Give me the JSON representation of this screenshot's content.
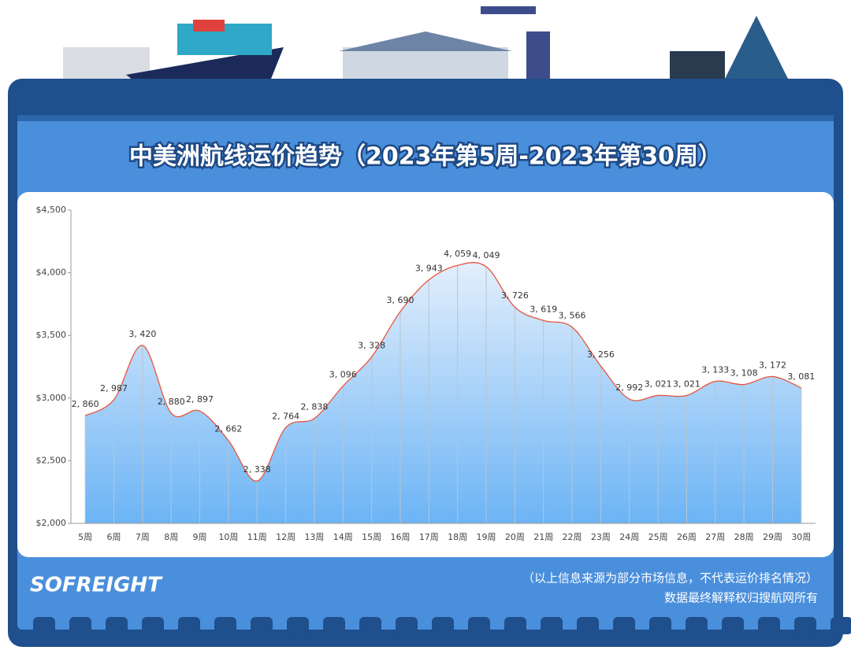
{
  "chart_data": {
    "type": "line",
    "title": "中美洲航线运价趋势（2023年第5周-2023年第30周）",
    "categories": [
      "5周",
      "6周",
      "7周",
      "8周",
      "9周",
      "10周",
      "11周",
      "12周",
      "13周",
      "14周",
      "15周",
      "16周",
      "17周",
      "18周",
      "19周",
      "20周",
      "21周",
      "22周",
      "23周",
      "24周",
      "25周",
      "26周",
      "27周",
      "28周",
      "29周",
      "30周"
    ],
    "values": [
      2860,
      2987,
      3420,
      2880,
      2897,
      2662,
      2338,
      2764,
      2838,
      3096,
      3328,
      3690,
      3943,
      4059,
      4049,
      3726,
      3619,
      3566,
      3256,
      2992,
      3021,
      3021,
      3133,
      3108,
      3172,
      3081
    ],
    "value_labels": [
      "2, 860",
      "2, 987",
      "3, 420",
      "2, 880",
      "2, 897",
      "2, 662",
      "2, 338",
      "2, 764",
      "2, 838",
      "3, 096",
      "3, 328",
      "3, 690",
      "3, 943",
      "4, 059",
      "4, 049",
      "3, 726",
      "3, 619",
      "3, 566",
      "3, 256",
      "2, 992",
      "3, 021",
      "3, 021",
      "3, 133",
      "3, 108",
      "3, 172",
      "3, 081"
    ],
    "color": "#e8553e",
    "ylim": [
      2000,
      4500
    ],
    "yticks": [
      {
        "value": 2000,
        "label": "$2,000"
      },
      {
        "value": 2500,
        "label": "$2,500"
      },
      {
        "value": 3000,
        "label": "$3,000"
      },
      {
        "value": 3500,
        "label": "$3,500"
      },
      {
        "value": 4000,
        "label": "$4,000"
      },
      {
        "value": 4500,
        "label": "$4,500"
      }
    ]
  },
  "brand": "SOFREIGHT",
  "footnotes": [
    "（以上信息来源为部分市场信息，不代表运价排名情况）",
    "数据最终解释权归搜航网所有"
  ]
}
